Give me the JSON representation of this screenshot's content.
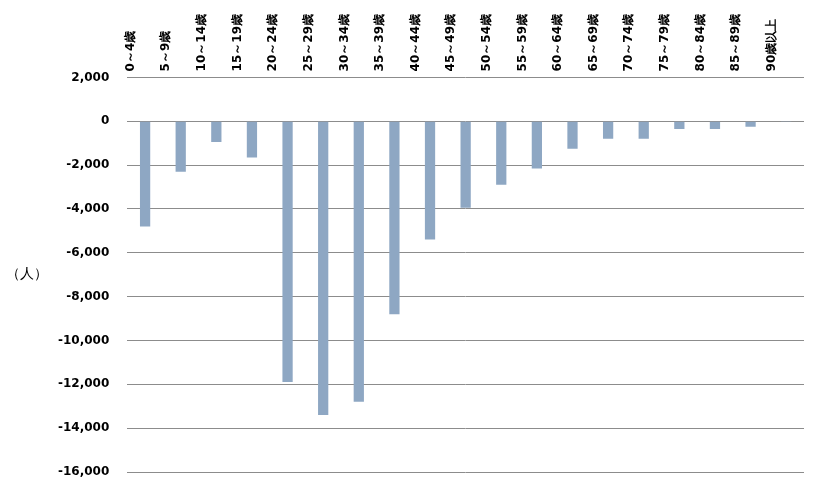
{
  "chart_data": {
    "type": "bar",
    "ylabel": "（人）",
    "categories": [
      "0～4歳",
      "5～9歳",
      "10～14歳",
      "15～19歳",
      "20～24歳",
      "25～29歳",
      "30～34歳",
      "35～39歳",
      "40～44歳",
      "45～49歳",
      "50～54歳",
      "55～59歳",
      "60～64歳",
      "65～69歳",
      "70～74歳",
      "75～79歳",
      "80～84歳",
      "85～89歳",
      "90歳以上"
    ],
    "values": [
      -4800,
      -2300,
      -950,
      -1650,
      -11900,
      -13400,
      -12800,
      -8800,
      -5400,
      -3950,
      -2900,
      -2150,
      -1250,
      -800,
      -800,
      -350,
      -350,
      -250,
      -30
    ],
    "color": "#8ea7c3",
    "ylim": [
      -16000,
      2000
    ],
    "yticks": [
      {
        "value": -16000,
        "label": "-16,000"
      },
      {
        "value": -14000,
        "label": "-14,000"
      },
      {
        "value": -12000,
        "label": "-12,000"
      },
      {
        "value": -10000,
        "label": "-10,000"
      },
      {
        "value": -8000,
        "label": "-8,000"
      },
      {
        "value": -6000,
        "label": "-6,000"
      },
      {
        "value": -4000,
        "label": "-4,000"
      },
      {
        "value": -2000,
        "label": "-2,000"
      },
      0,
      {
        "value": 2000,
        "label": "2,000"
      }
    ],
    "grid": true
  }
}
